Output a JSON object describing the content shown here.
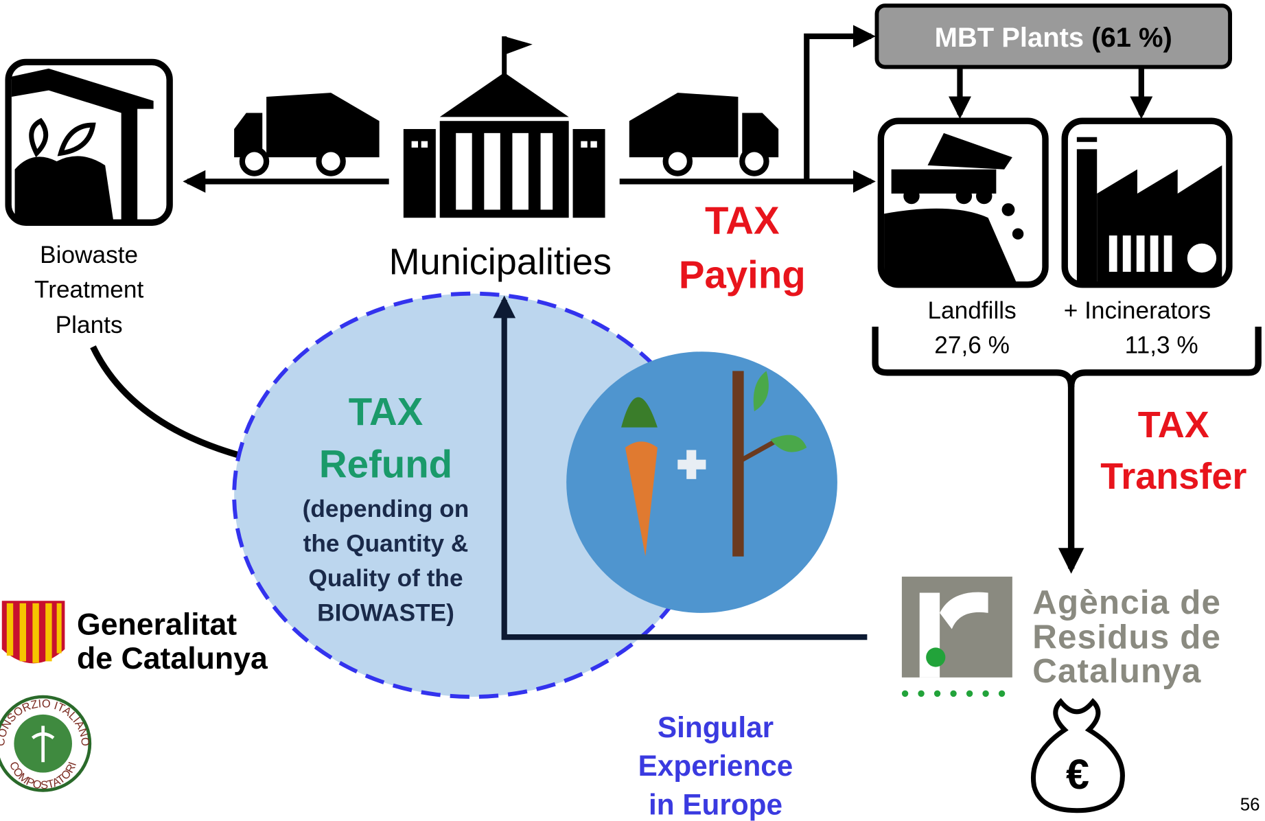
{
  "mbt": {
    "label": "MBT Plants",
    "share": "(61 %)"
  },
  "biowaste": {
    "lines": [
      "Biowaste",
      "Treatment",
      "Plants"
    ]
  },
  "municipalities": "Municipalities",
  "tax_paying": [
    "TAX",
    "Paying"
  ],
  "landfills": {
    "label": "Landfills",
    "share": "27,6 %"
  },
  "incinerators": {
    "label": "+ Incinerators",
    "share": "11,3 %"
  },
  "tax_transfer": [
    "TAX",
    "Transfer"
  ],
  "tax_refund": {
    "title": [
      "TAX",
      "Refund"
    ],
    "note": [
      "(depending on",
      "the Quantity &",
      "Quality of the",
      "BIOWASTE)"
    ]
  },
  "generalitat": [
    "Generalitat",
    "de Catalunya"
  ],
  "consorzio": [
    "CONSORZIO ITALIANO",
    "COMPOSTATORI"
  ],
  "agency": [
    "Agència de",
    "Residus de",
    "Catalunya"
  ],
  "money_symbol": "€",
  "singular": [
    "Singular",
    "Experience",
    "in Europe"
  ],
  "page_number": "56"
}
